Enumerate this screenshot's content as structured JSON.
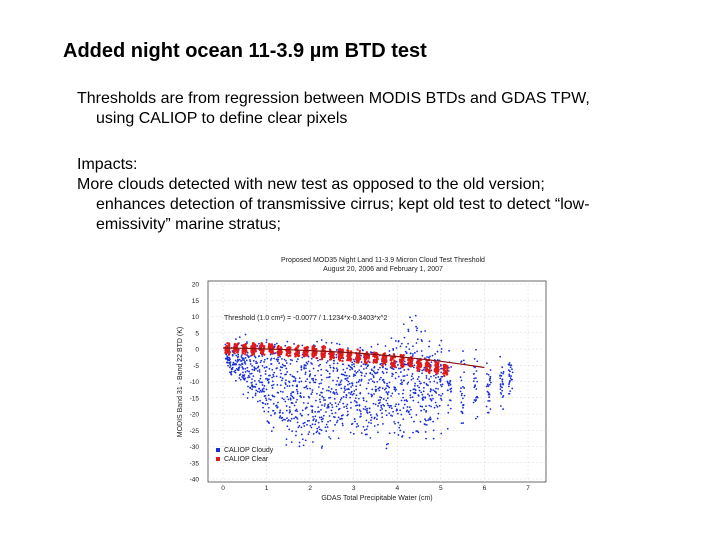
{
  "slide": {
    "title": "Added night ocean 11-3.9 µm BTD test",
    "para1": {
      "line1": "Thresholds are from regression between MODIS BTDs and GDAS TPW,",
      "line2": "using CALIOP to define clear pixels"
    },
    "para2": {
      "line1": "Impacts:",
      "line2": "More clouds detected with new test as opposed to the old version;",
      "line3": "enhances detection of transmissive cirrus; kept old test to detect “low-",
      "line4": "emissivity” marine stratus;"
    }
  },
  "chart_data": {
    "type": "scatter",
    "title": "Proposed MOD35 Night Land 11-3.9 Micron Cloud Test Threshold",
    "subtitle": "August 20, 2006 and February 1, 2007",
    "xlabel": "GDAS Total Precipitable Water (cm)",
    "ylabel": "MODIS Band 31 - Band 22 BTD (K)",
    "xlim": [
      0,
      7
    ],
    "ylim": [
      -40,
      20
    ],
    "xticks": [
      "0",
      "1",
      "2",
      "3",
      "4",
      "5",
      "6",
      "7"
    ],
    "yticks": [
      "20",
      "15",
      "10",
      "5",
      "0",
      "-5",
      "-10",
      "-15",
      "-20",
      "-25",
      "-30",
      "-35",
      "-40"
    ],
    "annotation": "Threshold (1.0 cm²) = -0.0077 / 1.1234*x-0.3403*x^2",
    "legend": [
      "CALIOP Cloudy",
      "CALIOP Clear"
    ],
    "legend_position": "bottom-left",
    "colors": {
      "cloudy": "#1a2ed6",
      "clear": "#e01a1a",
      "fit": "#8a1010"
    },
    "fit_line": {
      "x": [
        0,
        0.5,
        1,
        1.5,
        2,
        2.5,
        3,
        3.5,
        4,
        4.5,
        5,
        5.5,
        6
      ],
      "y": [
        0.3,
        0.2,
        0.0,
        -0.2,
        -0.5,
        -0.8,
        -1.2,
        -1.7,
        -2.3,
        -3.0,
        -3.8,
        -4.7,
        -5.7
      ]
    },
    "series": [
      {
        "name": "CALIOP Cloudy",
        "x": [
          0.1,
          0.2,
          0.3,
          0.4,
          0.5,
          0.6,
          0.7,
          0.8,
          0.9,
          1.0,
          1.1,
          1.2,
          1.3,
          1.4,
          1.5,
          1.6,
          1.7,
          1.8,
          1.9,
          2.0,
          2.1,
          2.2,
          2.3,
          2.4,
          2.5,
          2.6,
          2.7,
          2.8,
          2.9,
          3.0,
          3.1,
          3.2,
          3.3,
          3.4,
          3.5,
          3.6,
          3.7,
          3.8,
          3.9,
          4.0,
          4.1,
          4.2,
          4.3,
          4.4,
          4.5,
          4.6,
          4.7,
          4.8,
          4.9,
          5.0,
          5.2,
          5.5,
          5.8,
          6.1,
          6.4,
          6.6
        ],
        "ylow": [
          -7,
          -9,
          -11,
          -13,
          -15,
          -17,
          -19,
          -21,
          -23,
          -25,
          -27,
          -28,
          -29,
          -30,
          -31,
          -31,
          -32,
          -33,
          -32,
          -30,
          -31,
          -32,
          -33,
          -31,
          -30,
          -32,
          -33,
          -31,
          -30,
          -29,
          -30,
          -31,
          -32,
          -31,
          -30,
          -29,
          -31,
          -32,
          -30,
          -29,
          -30,
          -31,
          -30,
          -28,
          -29,
          -30,
          -31,
          -29,
          -28,
          -27,
          -26,
          -25,
          -24,
          -22,
          -20,
          -16
        ],
        "yhigh": [
          2,
          3,
          4,
          5,
          6,
          5,
          4,
          6,
          7,
          6,
          5,
          7,
          8,
          6,
          5,
          4,
          6,
          7,
          5,
          3,
          4,
          5,
          6,
          4,
          3,
          5,
          6,
          4,
          3,
          4,
          5,
          6,
          4,
          3,
          5,
          6,
          4,
          3,
          6,
          8,
          10,
          12,
          13,
          14,
          12,
          10,
          8,
          6,
          5,
          4,
          3,
          2,
          1,
          0,
          -1,
          -2
        ]
      },
      {
        "name": "CALIOP Clear",
        "x": [
          0.1,
          0.3,
          0.5,
          0.7,
          0.9,
          1.1,
          1.3,
          1.5,
          1.7,
          1.9,
          2.1,
          2.3,
          2.5,
          2.7,
          2.9,
          3.1,
          3.3,
          3.5,
          3.7,
          3.9,
          4.1,
          4.3,
          4.5,
          4.7,
          4.9,
          5.1
        ],
        "ylow": [
          -2,
          -2,
          -2,
          -2,
          -2,
          -2,
          -2.5,
          -2.5,
          -3,
          -3,
          -3,
          -3.5,
          -3.5,
          -4,
          -4,
          -4.5,
          -5,
          -5,
          -5.5,
          -6,
          -6,
          -6.5,
          -7,
          -7.5,
          -8,
          -8.5
        ],
        "yhigh": [
          2,
          2,
          2,
          2,
          2,
          2,
          1.5,
          1.5,
          1.5,
          1,
          1,
          1,
          0.5,
          0.5,
          0,
          0,
          -0.5,
          -0.5,
          -1,
          -1.5,
          -1.5,
          -2,
          -2.5,
          -3,
          -3.5,
          -4
        ]
      }
    ]
  }
}
